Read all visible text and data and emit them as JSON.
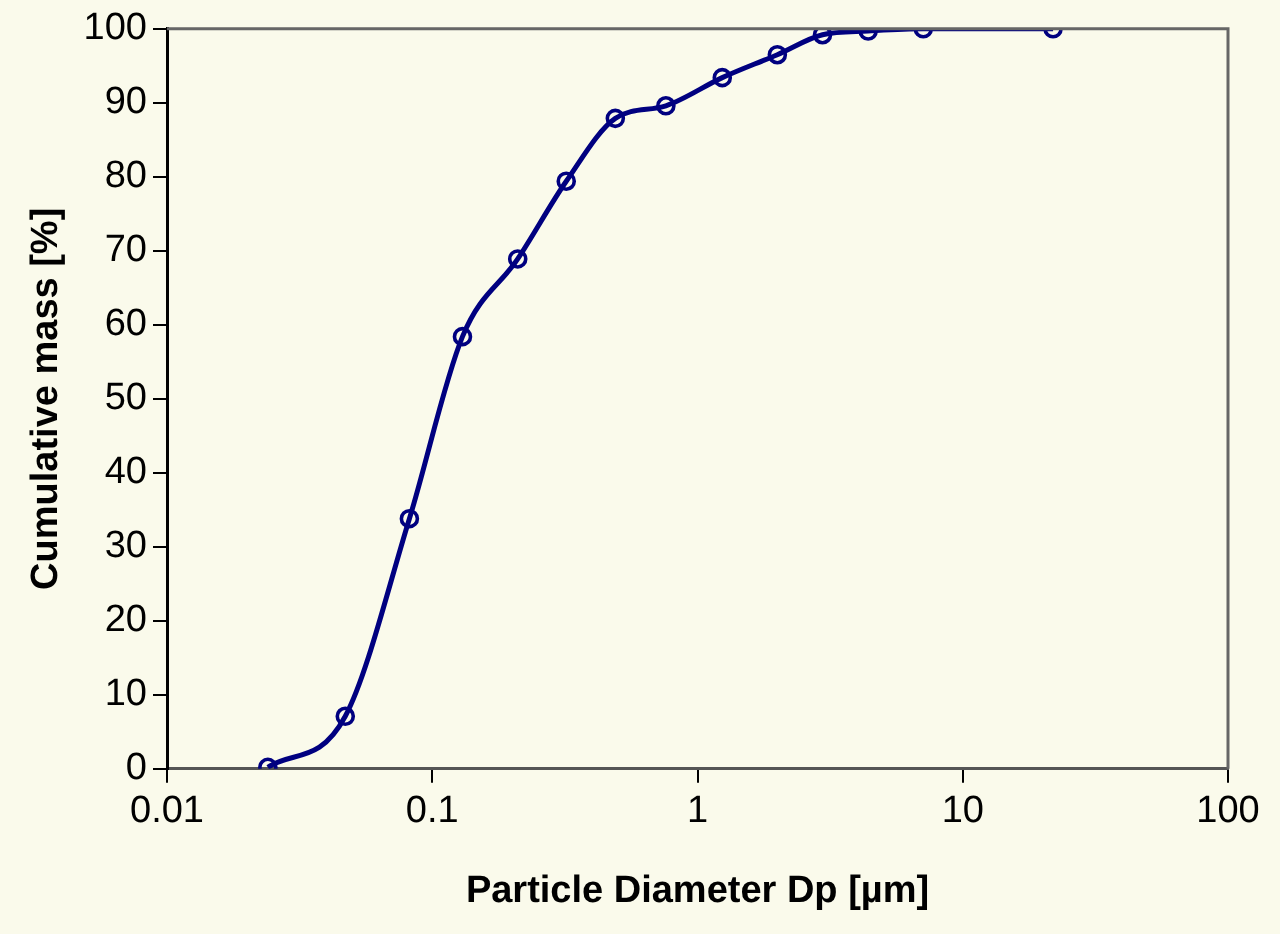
{
  "chart_data": {
    "type": "line",
    "xlabel": "Particle Diameter Dp [µm]",
    "ylabel": "Cumulative mass [%]",
    "x": [
      0.024,
      0.047,
      0.082,
      0.13,
      0.21,
      0.32,
      0.49,
      0.76,
      1.24,
      2.0,
      2.96,
      4.4,
      7.1,
      21.9
    ],
    "series": [
      {
        "color": "#000080",
        "values": [
          0.2,
          7.1,
          33.8,
          58.4,
          68.9,
          79.4,
          87.9,
          89.6,
          93.4,
          96.5,
          99.2,
          99.7,
          100,
          100
        ]
      }
    ],
    "log": "x",
    "xlim": [
      0.01,
      100
    ],
    "xticks": [
      0.01,
      0.1,
      1,
      10,
      100
    ],
    "ylim": [
      0,
      100
    ],
    "yticks": [
      0,
      10,
      20,
      30,
      40,
      50,
      60,
      70,
      80,
      90,
      100
    ],
    "grid": false,
    "legend": false,
    "marker": "circle",
    "line_style": "solid"
  }
}
